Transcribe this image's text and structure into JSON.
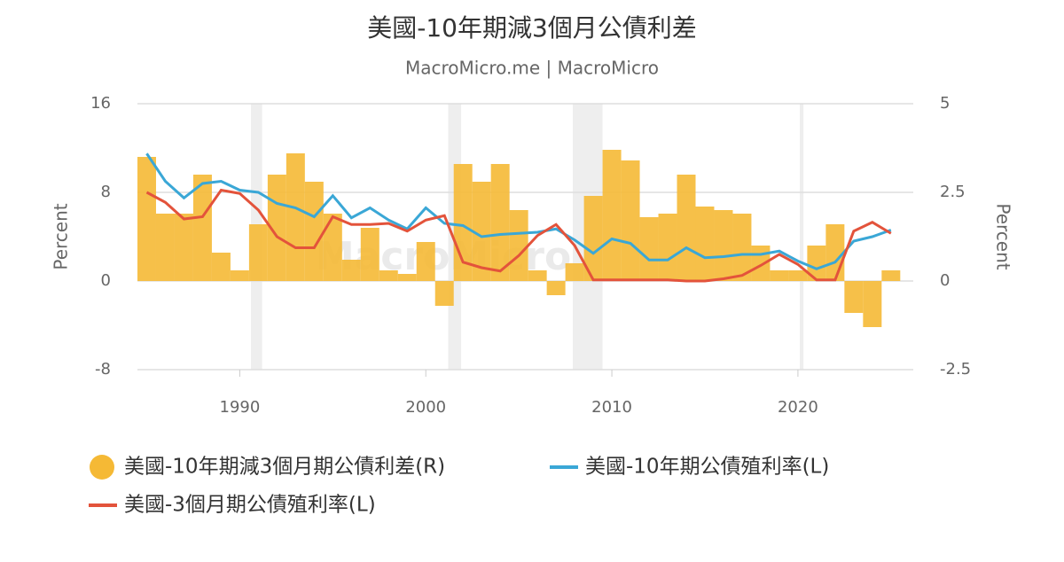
{
  "chart_data": {
    "type": "combo",
    "title": "美國-10年期減3個月公債利差",
    "subtitle": "MacroMicro.me | MacroMicro",
    "watermark": "MacroMicro",
    "y_label": "Percent",
    "y2_label": "Percent",
    "x": [
      1985,
      1986,
      1987,
      1988,
      1989,
      1990,
      1991,
      1992,
      1993,
      1994,
      1995,
      1996,
      1997,
      1998,
      1999,
      2000,
      2001,
      2002,
      2003,
      2004,
      2005,
      2006,
      2007,
      2008,
      2009,
      2010,
      2011,
      2012,
      2013,
      2014,
      2015,
      2016,
      2017,
      2018,
      2019,
      2020,
      2021,
      2022,
      2023,
      2024,
      2025
    ],
    "xlim": [
      1984.5,
      2026.2
    ],
    "xticks": [
      1990,
      2000,
      2010,
      2020
    ],
    "ylim": [
      -8,
      16
    ],
    "yticks": [
      -8,
      0,
      8,
      16
    ],
    "y2lim": [
      -2.5,
      5
    ],
    "y2ticks": [
      -2.5,
      0,
      2.5,
      5
    ],
    "grid": true,
    "recessions": [
      [
        1990.6,
        1991.2
      ],
      [
        2001.2,
        2001.9
      ],
      [
        2007.9,
        2009.5
      ],
      [
        2020.1,
        2020.3
      ]
    ],
    "series": [
      {
        "name": "美國-10年期減3個月期公債利差(R)",
        "kind": "area",
        "axis": "y2",
        "color": "#f5b935",
        "values": [
          3.5,
          1.9,
          1.9,
          3.0,
          0.8,
          0.3,
          1.6,
          3.0,
          3.6,
          2.8,
          1.9,
          0.6,
          1.5,
          0.3,
          0.2,
          1.1,
          -0.7,
          3.3,
          2.8,
          3.3,
          2.0,
          0.3,
          -0.4,
          0.5,
          2.4,
          3.7,
          3.4,
          1.8,
          1.9,
          3.0,
          2.1,
          2.0,
          1.9,
          1.0,
          0.3,
          0.3,
          1.0,
          1.6,
          -0.9,
          -1.3,
          0.3
        ]
      },
      {
        "name": "美國-10年期公債殖利率(L)",
        "kind": "line",
        "color": "#3aa7d6",
        "values": [
          11.5,
          9.0,
          7.5,
          8.8,
          9.0,
          8.2,
          8.0,
          7.0,
          6.6,
          5.8,
          7.7,
          5.7,
          6.6,
          5.5,
          4.7,
          6.6,
          5.2,
          5.0,
          4.0,
          4.2,
          4.3,
          4.4,
          4.7,
          3.7,
          2.5,
          3.8,
          3.4,
          1.9,
          1.9,
          3.0,
          2.1,
          2.2,
          2.4,
          2.4,
          2.7,
          1.8,
          1.1,
          1.7,
          3.6,
          4.0,
          4.6
        ]
      },
      {
        "name": "美國-3個月期公債殖利率(L)",
        "kind": "line",
        "color": "#e3533b",
        "values": [
          8.0,
          7.1,
          5.6,
          5.8,
          8.2,
          7.9,
          6.4,
          4.0,
          3.0,
          3.0,
          5.8,
          5.1,
          5.1,
          5.2,
          4.5,
          5.5,
          5.9,
          1.7,
          1.2,
          0.9,
          2.3,
          4.1,
          5.1,
          3.2,
          0.1,
          0.1,
          0.1,
          0.1,
          0.1,
          0.0,
          0.0,
          0.2,
          0.5,
          1.4,
          2.4,
          1.5,
          0.1,
          0.1,
          4.5,
          5.3,
          4.3
        ]
      }
    ]
  }
}
